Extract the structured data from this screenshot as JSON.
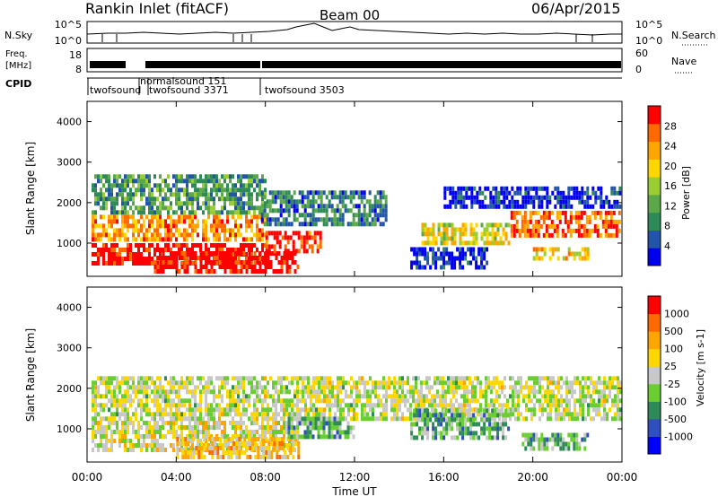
{
  "header": {
    "station": "Rankin Inlet (fitACF)",
    "beam": "Beam 00",
    "date": "06/Apr/2015"
  },
  "strips": {
    "nsky_label": "N.Sky",
    "nsearch_label": "N.Search",
    "freq_label_line1": "Freq.",
    "freq_label_line2": "[MHz]",
    "nave_label": "Nave",
    "cpid_label": "CPID",
    "nsky_ticks": [
      "10^5",
      "10^0"
    ],
    "freq_ticks": [
      "18",
      "8"
    ],
    "nave_ticks": [
      "60",
      "0"
    ],
    "cpid_entries": [
      "twofsound",
      "normalsound 151",
      "twofsound 3371",
      "twofsound 3503"
    ]
  },
  "chart_data": [
    {
      "type": "heatmap",
      "panel": "power",
      "ylabel": "Slant Range [km]",
      "xlabel": "Time UT",
      "ylim": [
        180,
        4500
      ],
      "xlim": [
        0,
        24
      ],
      "x_ticks": [
        "00:00",
        "04:00",
        "08:00",
        "12:00",
        "16:00",
        "20:00",
        "00:00"
      ],
      "y_ticks": [
        1000,
        2000,
        3000,
        4000
      ],
      "colorbar": {
        "label": "Power [dB]",
        "tick_labels": [
          "28",
          "24",
          "20",
          "16",
          "12",
          "8",
          "4"
        ],
        "colors": [
          "#0000ee",
          "#2255aa",
          "#2e8b57",
          "#5aa848",
          "#9acd32",
          "#ffd700",
          "#ffa500",
          "#ff6a00",
          "#ff0000"
        ]
      },
      "series": [
        {
          "t0": 0.2,
          "t1": 8.0,
          "r0": 400,
          "r1": 1000,
          "level": 28
        },
        {
          "t0": 0.2,
          "t1": 8.0,
          "r0": 1000,
          "r1": 1700,
          "level": 22
        },
        {
          "t0": 0.2,
          "t1": 8.0,
          "r0": 1700,
          "r1": 2700,
          "level": 12
        },
        {
          "t0": 3.0,
          "t1": 9.5,
          "r0": 200,
          "r1": 800,
          "level": 28
        },
        {
          "t0": 8.0,
          "t1": 10.5,
          "r0": 800,
          "r1": 1300,
          "level": 26
        },
        {
          "t0": 7.8,
          "t1": 13.5,
          "r0": 1400,
          "r1": 2300,
          "level": 10
        },
        {
          "t0": 14.5,
          "t1": 18.0,
          "r0": 400,
          "r1": 900,
          "level": 6
        },
        {
          "t0": 15.0,
          "t1": 19.0,
          "r0": 900,
          "r1": 1500,
          "level": 18
        },
        {
          "t0": 16.0,
          "t1": 24.0,
          "r0": 1800,
          "r1": 2400,
          "level": 6
        },
        {
          "t0": 19.0,
          "t1": 24.0,
          "r0": 1100,
          "r1": 1800,
          "level": 24
        },
        {
          "t0": 20.0,
          "t1": 22.5,
          "r0": 600,
          "r1": 900,
          "level": 20
        }
      ]
    },
    {
      "type": "heatmap",
      "panel": "velocity",
      "ylabel": "Slant Range [km]",
      "xlabel": "Time UT",
      "ylim": [
        180,
        4500
      ],
      "xlim": [
        0,
        24
      ],
      "x_ticks": [
        "00:00",
        "04:00",
        "08:00",
        "12:00",
        "16:00",
        "20:00",
        "00:00"
      ],
      "y_ticks": [
        1000,
        2000,
        3000,
        4000
      ],
      "colorbar": {
        "label": "Velocity [m s-1]",
        "tick_labels": [
          "1000",
          "500",
          "100",
          "25",
          "-25",
          "-100",
          "-500",
          "-1000"
        ],
        "colors": [
          "#0000ff",
          "#2f4fbf",
          "#2e8b57",
          "#6acd32",
          "#c8c8c8",
          "#ffd700",
          "#ffa500",
          "#ff6a00",
          "#ff0000"
        ]
      },
      "series": [
        {
          "t0": 0.2,
          "t1": 9.5,
          "r0": 400,
          "r1": 1200,
          "level": 100
        },
        {
          "t0": 0.2,
          "t1": 24.0,
          "r0": 1200,
          "r1": 2300,
          "level": 0
        },
        {
          "t0": 4.0,
          "t1": 9.5,
          "r0": 200,
          "r1": 800,
          "level": 300
        },
        {
          "t0": 9.0,
          "t1": 12.0,
          "r0": 700,
          "r1": 1300,
          "level": -300
        },
        {
          "t0": 14.5,
          "t1": 19.0,
          "r0": 700,
          "r1": 1500,
          "level": -300
        },
        {
          "t0": 19.5,
          "t1": 22.5,
          "r0": 500,
          "r1": 900,
          "level": -300
        }
      ]
    }
  ]
}
